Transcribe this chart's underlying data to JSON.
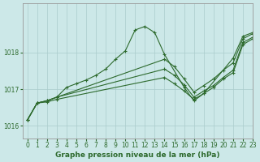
{
  "title": "Graphe pression niveau de la mer (hPa)",
  "background_color": "#cce8e8",
  "plot_bg_color": "#cce8e8",
  "line_color": "#2d6a2d",
  "grid_color": "#aacccc",
  "xlim": [
    -0.5,
    23
  ],
  "ylim": [
    1015.65,
    1019.35
  ],
  "yticks": [
    1016,
    1017,
    1018
  ],
  "xticks": [
    0,
    1,
    2,
    3,
    4,
    5,
    6,
    7,
    8,
    9,
    10,
    11,
    12,
    13,
    14,
    15,
    16,
    17,
    18,
    19,
    20,
    21,
    22,
    23
  ],
  "series": [
    {
      "x": [
        0,
        1,
        2,
        3,
        4,
        5,
        6,
        7,
        8,
        9,
        10,
        11,
        12,
        13,
        14,
        16,
        17,
        18,
        21,
        22,
        23
      ],
      "y": [
        1016.15,
        1016.62,
        1016.68,
        1016.78,
        1017.05,
        1017.15,
        1017.25,
        1017.38,
        1017.55,
        1017.82,
        1018.05,
        1018.62,
        1018.72,
        1018.55,
        1017.95,
        1017.05,
        1016.68,
        1016.88,
        1017.85,
        1018.45,
        1018.55
      ]
    },
    {
      "x": [
        0,
        1,
        2,
        3,
        14,
        15,
        16,
        17,
        18,
        19,
        20,
        21,
        22,
        23
      ],
      "y": [
        1016.15,
        1016.62,
        1016.68,
        1016.78,
        1017.82,
        1017.62,
        1017.28,
        1016.92,
        1017.1,
        1017.28,
        1017.52,
        1017.72,
        1018.38,
        1018.52
      ]
    },
    {
      "x": [
        0,
        1,
        2,
        3,
        14,
        15,
        16,
        17,
        18,
        19,
        20,
        21,
        22,
        23
      ],
      "y": [
        1016.15,
        1016.62,
        1016.68,
        1016.78,
        1017.55,
        1017.38,
        1017.12,
        1016.78,
        1016.95,
        1017.1,
        1017.32,
        1017.52,
        1018.28,
        1018.42
      ]
    },
    {
      "x": [
        0,
        1,
        2,
        3,
        14,
        15,
        16,
        17,
        18,
        19,
        20,
        21,
        22,
        23
      ],
      "y": [
        1016.15,
        1016.62,
        1016.65,
        1016.72,
        1017.32,
        1017.15,
        1016.95,
        1016.72,
        1016.88,
        1017.05,
        1017.28,
        1017.45,
        1018.22,
        1018.38
      ]
    }
  ],
  "marker": "+",
  "markersize": 3.5,
  "linewidth": 0.8,
  "title_fontsize": 6.5
}
